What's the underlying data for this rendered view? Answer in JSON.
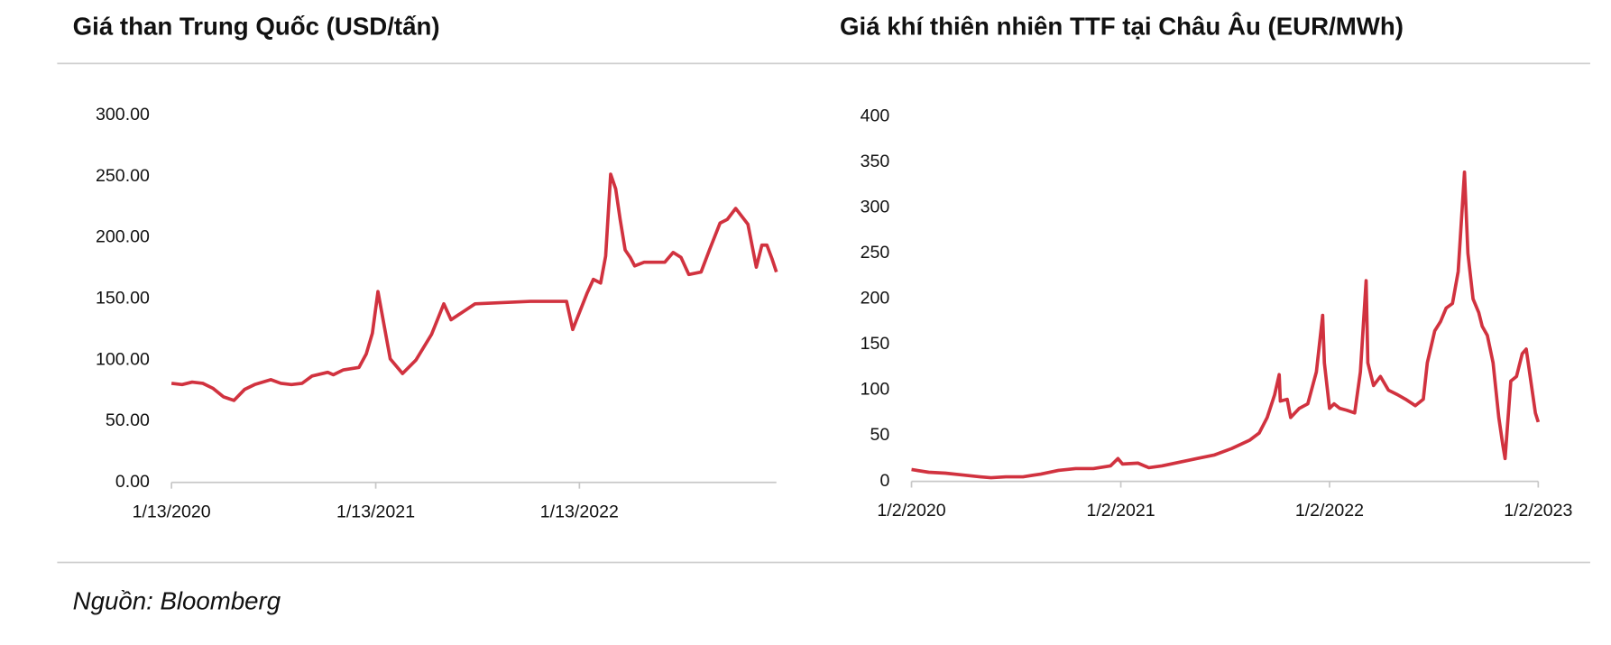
{
  "chart_data": [
    {
      "type": "line",
      "title": "Giá than Trung Quốc (USD/tấn)",
      "x": [
        "2020-01-13",
        "2020-02-01",
        "2020-02-19",
        "2020-03-09",
        "2020-03-27",
        "2020-04-15",
        "2020-05-04",
        "2020-05-23",
        "2020-06-10",
        "2020-07-09",
        "2020-07-27",
        "2020-08-15",
        "2020-09-03",
        "2020-09-21",
        "2020-10-19",
        "2020-10-29",
        "2020-11-16",
        "2020-12-14",
        "2020-12-27",
        "2021-01-07",
        "2021-01-17",
        "2021-02-08",
        "2021-03-02",
        "2021-03-26",
        "2021-04-23",
        "2021-05-15",
        "2021-05-28",
        "2021-07-10",
        "2021-10-17",
        "2021-12-21",
        "2022-01-01",
        "2022-01-27",
        "2022-02-07",
        "2022-02-20",
        "2022-03-01",
        "2022-03-10",
        "2022-03-19",
        "2022-03-27",
        "2022-04-05",
        "2022-04-14",
        "2022-04-22",
        "2022-05-09",
        "2022-05-22",
        "2022-06-15",
        "2022-06-30",
        "2022-07-14",
        "2022-07-28",
        "2022-08-19",
        "2022-09-03",
        "2022-09-22",
        "2022-10-05",
        "2022-10-20",
        "2022-11-11",
        "2022-11-26",
        "2022-12-06",
        "2022-12-15",
        "2022-12-24",
        "2023-01-01"
      ],
      "series": [
        {
          "color": "#d1323f",
          "values": [
            81,
            80,
            82,
            81,
            77,
            70,
            67,
            76,
            80,
            84,
            81,
            80,
            81,
            87,
            90,
            88,
            92,
            94,
            105,
            122,
            156,
            101,
            89,
            100,
            121,
            146,
            133,
            146,
            148,
            148,
            125,
            155,
            166,
            163,
            185,
            252,
            240,
            215,
            190,
            184,
            177,
            180,
            180,
            180,
            188,
            184,
            170,
            172,
            190,
            212,
            215,
            224,
            211,
            176,
            194,
            194,
            183,
            172
          ]
        }
      ],
      "xlim": [
        "2020-01-13",
        "2023-01-01"
      ],
      "xticks": [
        {
          "value": "2020-01-13",
          "label": "1/13/2020"
        },
        {
          "value": "2021-01-13",
          "label": "1/13/2021"
        },
        {
          "value": "2022-01-13",
          "label": "1/13/2022"
        }
      ],
      "ylim": [
        0,
        300
      ],
      "yticks": [
        {
          "value": 0,
          "label": "0.00"
        },
        {
          "value": 50,
          "label": "50.00"
        },
        {
          "value": 100,
          "label": "100.00"
        },
        {
          "value": 150,
          "label": "150.00"
        },
        {
          "value": 200,
          "label": "200.00"
        },
        {
          "value": 250,
          "label": "250.00"
        },
        {
          "value": 300,
          "label": "300.00"
        }
      ],
      "grid": false
    },
    {
      "type": "line",
      "title": "Giá khí thiên nhiên TTF tại Châu Âu (EUR/MWh)",
      "x": [
        "2020-01-02",
        "2020-02-01",
        "2020-03-01",
        "2020-04-01",
        "2020-05-01",
        "2020-05-20",
        "2020-06-15",
        "2020-07-15",
        "2020-08-15",
        "2020-09-15",
        "2020-10-15",
        "2020-11-15",
        "2020-12-15",
        "2020-12-28",
        "2021-01-05",
        "2021-02-01",
        "2021-02-20",
        "2021-03-15",
        "2021-04-15",
        "2021-05-15",
        "2021-06-15",
        "2021-07-15",
        "2021-08-15",
        "2021-09-01",
        "2021-09-15",
        "2021-09-28",
        "2021-10-06",
        "2021-10-08",
        "2021-10-20",
        "2021-10-26",
        "2021-11-10",
        "2021-11-25",
        "2021-12-10",
        "2021-12-21",
        "2021-12-24",
        "2022-01-02",
        "2022-01-10",
        "2022-01-20",
        "2022-02-01",
        "2022-02-15",
        "2022-02-25",
        "2022-03-07",
        "2022-03-10",
        "2022-03-20",
        "2022-04-01",
        "2022-04-15",
        "2022-05-01",
        "2022-05-15",
        "2022-06-01",
        "2022-06-15",
        "2022-06-22",
        "2022-07-05",
        "2022-07-15",
        "2022-07-25",
        "2022-08-05",
        "2022-08-15",
        "2022-08-26",
        "2022-09-01",
        "2022-09-10",
        "2022-09-20",
        "2022-09-26",
        "2022-10-05",
        "2022-10-15",
        "2022-10-25",
        "2022-11-01",
        "2022-11-05",
        "2022-11-15",
        "2022-11-25",
        "2022-12-05",
        "2022-12-12",
        "2022-12-20",
        "2022-12-28",
        "2023-01-02"
      ],
      "series": [
        {
          "color": "#d1323f",
          "values": [
            13,
            10,
            9,
            7,
            5,
            4,
            5,
            5,
            8,
            12,
            14,
            14,
            17,
            25,
            19,
            20,
            15,
            17,
            21,
            25,
            29,
            36,
            45,
            53,
            70,
            95,
            117,
            88,
            90,
            70,
            80,
            85,
            120,
            182,
            130,
            80,
            85,
            80,
            78,
            75,
            120,
            220,
            130,
            105,
            115,
            100,
            95,
            90,
            83,
            90,
            130,
            165,
            175,
            190,
            195,
            230,
            339,
            250,
            200,
            185,
            170,
            160,
            130,
            70,
            40,
            25,
            110,
            115,
            140,
            145,
            110,
            75,
            65
          ]
        }
      ],
      "xlim": [
        "2020-01-02",
        "2023-01-02"
      ],
      "xticks": [
        {
          "value": "2020-01-02",
          "label": "1/2/2020"
        },
        {
          "value": "2021-01-02",
          "label": "1/2/2021"
        },
        {
          "value": "2022-01-02",
          "label": "1/2/2022"
        },
        {
          "value": "2023-01-02",
          "label": "1/2/2023"
        }
      ],
      "ylim": [
        0,
        400
      ],
      "yticks": [
        0,
        50,
        100,
        150,
        200,
        250,
        300,
        350,
        400
      ],
      "grid": false
    }
  ],
  "footer": {
    "source": "Nguồn: Bloomberg"
  }
}
